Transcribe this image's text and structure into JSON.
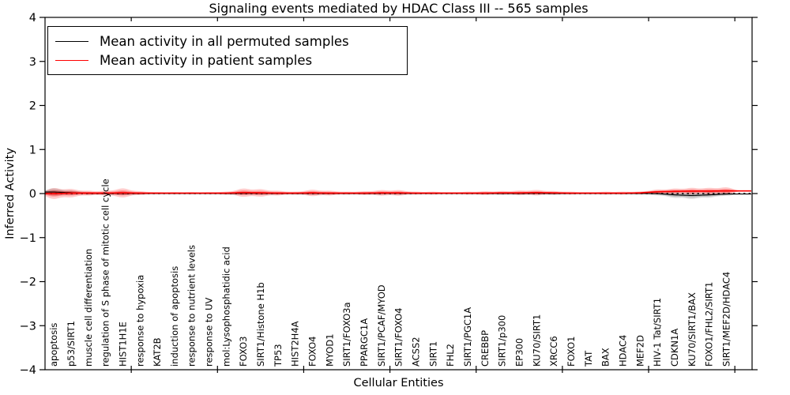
{
  "title": "Signaling events mediated by HDAC Class III -- 565 samples",
  "axes": {
    "xlabel": "Cellular Entities",
    "ylabel": "Inferred Activity",
    "y_tick_labels": [
      "4",
      "3",
      "2",
      "1",
      "0",
      "−1",
      "−2",
      "−3",
      "−4"
    ]
  },
  "chart_data": {
    "type": "violin",
    "title": "Signaling events mediated by HDAC Class III -- 565 samples",
    "xlabel": "Cellular Entities",
    "ylabel": "Inferred Activity",
    "ylim": [
      -4,
      4
    ],
    "y_ticks": [
      4,
      3,
      2,
      1,
      0,
      -1,
      -2,
      -3,
      -4
    ],
    "x_major_tick_every": 5,
    "zero_line": "dotted",
    "legend_position": "upper left",
    "entities": [
      "apoptosis",
      "p53/SIRT1",
      "muscle cell differentiation",
      "regulation of S phase of mitotic cell cycle",
      "HIST1H1E",
      "response to hypoxia",
      "KAT2B",
      "induction of apoptosis",
      "response to nutrient levels",
      "response to UV",
      "mol:Lysophosphatidic acid",
      "FOXO3",
      "SIRT1/Histone H1b",
      "TP53",
      "HIST2H4A",
      "FOXO4",
      "MYOD1",
      "SIRT1/FOXO3a",
      "PPARGC1A",
      "SIRT1/PCAF/MYOD",
      "SIRT1/FOXO4",
      "ACSS2",
      "SIRT1",
      "FHL2",
      "SIRT1/PGC1A",
      "CREBBP",
      "SIRT1/p300",
      "EP300",
      "KU70/SIRT1",
      "XRCC6",
      "FOXO1",
      "TAT",
      "BAX",
      "HDAC4",
      "MEF2D",
      "HIV-1 Tat/SIRT1",
      "CDKN1A",
      "KU70/SIRT1/BAX",
      "FOXO1/FHL2/SIRT1",
      "SIRT1/MEF2D/HDAC4"
    ],
    "series": [
      {
        "name": "Mean activity in all permuted samples",
        "color": "#000000",
        "mean": [
          0.035,
          0.02,
          0.005,
          0,
          0.005,
          0,
          0,
          0,
          0,
          0,
          0,
          0.005,
          0.005,
          0,
          0,
          0.005,
          0,
          0,
          0,
          0.005,
          0.005,
          0,
          0,
          0,
          0,
          0,
          0,
          0,
          0.005,
          0,
          0,
          0,
          0,
          0,
          0,
          0,
          -0.03,
          -0.045,
          -0.03,
          -0.01
        ],
        "spread": [
          0.085,
          0.05,
          0.03,
          0.02,
          0.04,
          0.02,
          0.015,
          0.015,
          0.015,
          0.015,
          0.02,
          0.03,
          0.03,
          0.02,
          0.02,
          0.03,
          0.02,
          0.02,
          0.02,
          0.025,
          0.025,
          0.015,
          0.015,
          0.015,
          0.015,
          0.02,
          0.02,
          0.02,
          0.025,
          0.02,
          0.015,
          0.015,
          0.015,
          0.015,
          0.015,
          0.04,
          0.065,
          0.075,
          0.06,
          0.04
        ]
      },
      {
        "name": "Mean activity in patient samples",
        "color": "#ff0000",
        "mean": [
          0,
          0.01,
          0.01,
          0.01,
          0.015,
          0.01,
          0.01,
          0.01,
          0.01,
          0.01,
          0.01,
          0.02,
          0.015,
          0.01,
          0.01,
          0.015,
          0.01,
          0.01,
          0.01,
          0.015,
          0.015,
          0.01,
          0.01,
          0.01,
          0.01,
          0.01,
          0.015,
          0.015,
          0.02,
          0.015,
          0.01,
          0.01,
          0.01,
          0.01,
          0.015,
          0.04,
          0.05,
          0.055,
          0.055,
          0.06
        ],
        "spread": [
          0.12,
          0.09,
          0.05,
          0.05,
          0.1,
          0.04,
          0.02,
          0.02,
          0.02,
          0.02,
          0.03,
          0.09,
          0.08,
          0.05,
          0.03,
          0.07,
          0.05,
          0.03,
          0.04,
          0.06,
          0.06,
          0.03,
          0.03,
          0.02,
          0.03,
          0.04,
          0.04,
          0.05,
          0.06,
          0.04,
          0.03,
          0.02,
          0.03,
          0.03,
          0.03,
          0.05,
          0.06,
          0.07,
          0.07,
          0.08
        ]
      }
    ]
  }
}
